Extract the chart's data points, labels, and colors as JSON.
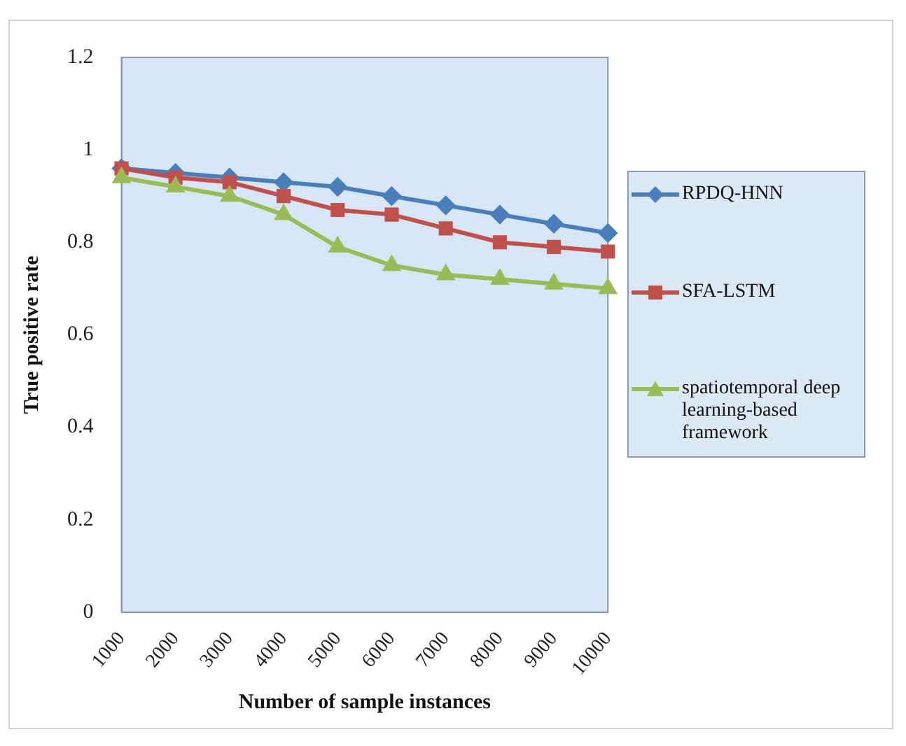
{
  "chart_data": {
    "type": "line",
    "xlabel": "Number of sample instances",
    "ylabel": "True positive rate",
    "categories": [
      "1000",
      "2000",
      "3000",
      "4000",
      "5000",
      "6000",
      "7000",
      "8000",
      "9000",
      "10000"
    ],
    "series": [
      {
        "name": "RPDQ-HNN",
        "color": "#4a7ebb",
        "marker": "diamond",
        "values": [
          0.96,
          0.95,
          0.94,
          0.93,
          0.92,
          0.9,
          0.88,
          0.86,
          0.84,
          0.82
        ]
      },
      {
        "name": "SFA-LSTM",
        "color": "#c0504d",
        "marker": "square",
        "values": [
          0.96,
          0.94,
          0.93,
          0.9,
          0.87,
          0.86,
          0.83,
          0.8,
          0.79,
          0.78
        ]
      },
      {
        "name": "spatiotemporal deep learning-based framework",
        "color": "#9bbb59",
        "marker": "triangle",
        "values": [
          0.94,
          0.92,
          0.9,
          0.86,
          0.79,
          0.75,
          0.73,
          0.72,
          0.71,
          0.7
        ]
      }
    ],
    "ylim": [
      0,
      1.2
    ],
    "yticks": [
      0,
      0.2,
      0.4,
      0.6,
      0.8,
      1,
      1.2
    ],
    "grid": false,
    "legend": "right"
  }
}
